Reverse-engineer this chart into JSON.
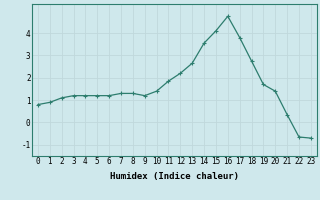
{
  "x": [
    0,
    1,
    2,
    3,
    4,
    5,
    6,
    7,
    8,
    9,
    10,
    11,
    12,
    13,
    14,
    15,
    16,
    17,
    18,
    19,
    20,
    21,
    22,
    23
  ],
  "y": [
    0.8,
    0.9,
    1.1,
    1.2,
    1.2,
    1.2,
    1.2,
    1.3,
    1.3,
    1.2,
    1.4,
    1.85,
    2.2,
    2.65,
    3.55,
    4.1,
    4.75,
    3.8,
    2.75,
    1.7,
    1.4,
    0.35,
    -0.65,
    -0.7
  ],
  "line_color": "#2d7d6e",
  "marker": "+",
  "marker_size": 3,
  "marker_lw": 0.8,
  "xlabel": "Humidex (Indice chaleur)",
  "xlim": [
    -0.5,
    23.5
  ],
  "ylim": [
    -1.5,
    5.3
  ],
  "yticks": [
    -1,
    0,
    1,
    2,
    3,
    4
  ],
  "xticks": [
    0,
    1,
    2,
    3,
    4,
    5,
    6,
    7,
    8,
    9,
    10,
    11,
    12,
    13,
    14,
    15,
    16,
    17,
    18,
    19,
    20,
    21,
    22,
    23
  ],
  "bg_color": "#cfe8ec",
  "grid_color": "#c0d8dc",
  "label_fontsize": 6.5,
  "tick_fontsize": 5.5,
  "line_width": 0.9
}
